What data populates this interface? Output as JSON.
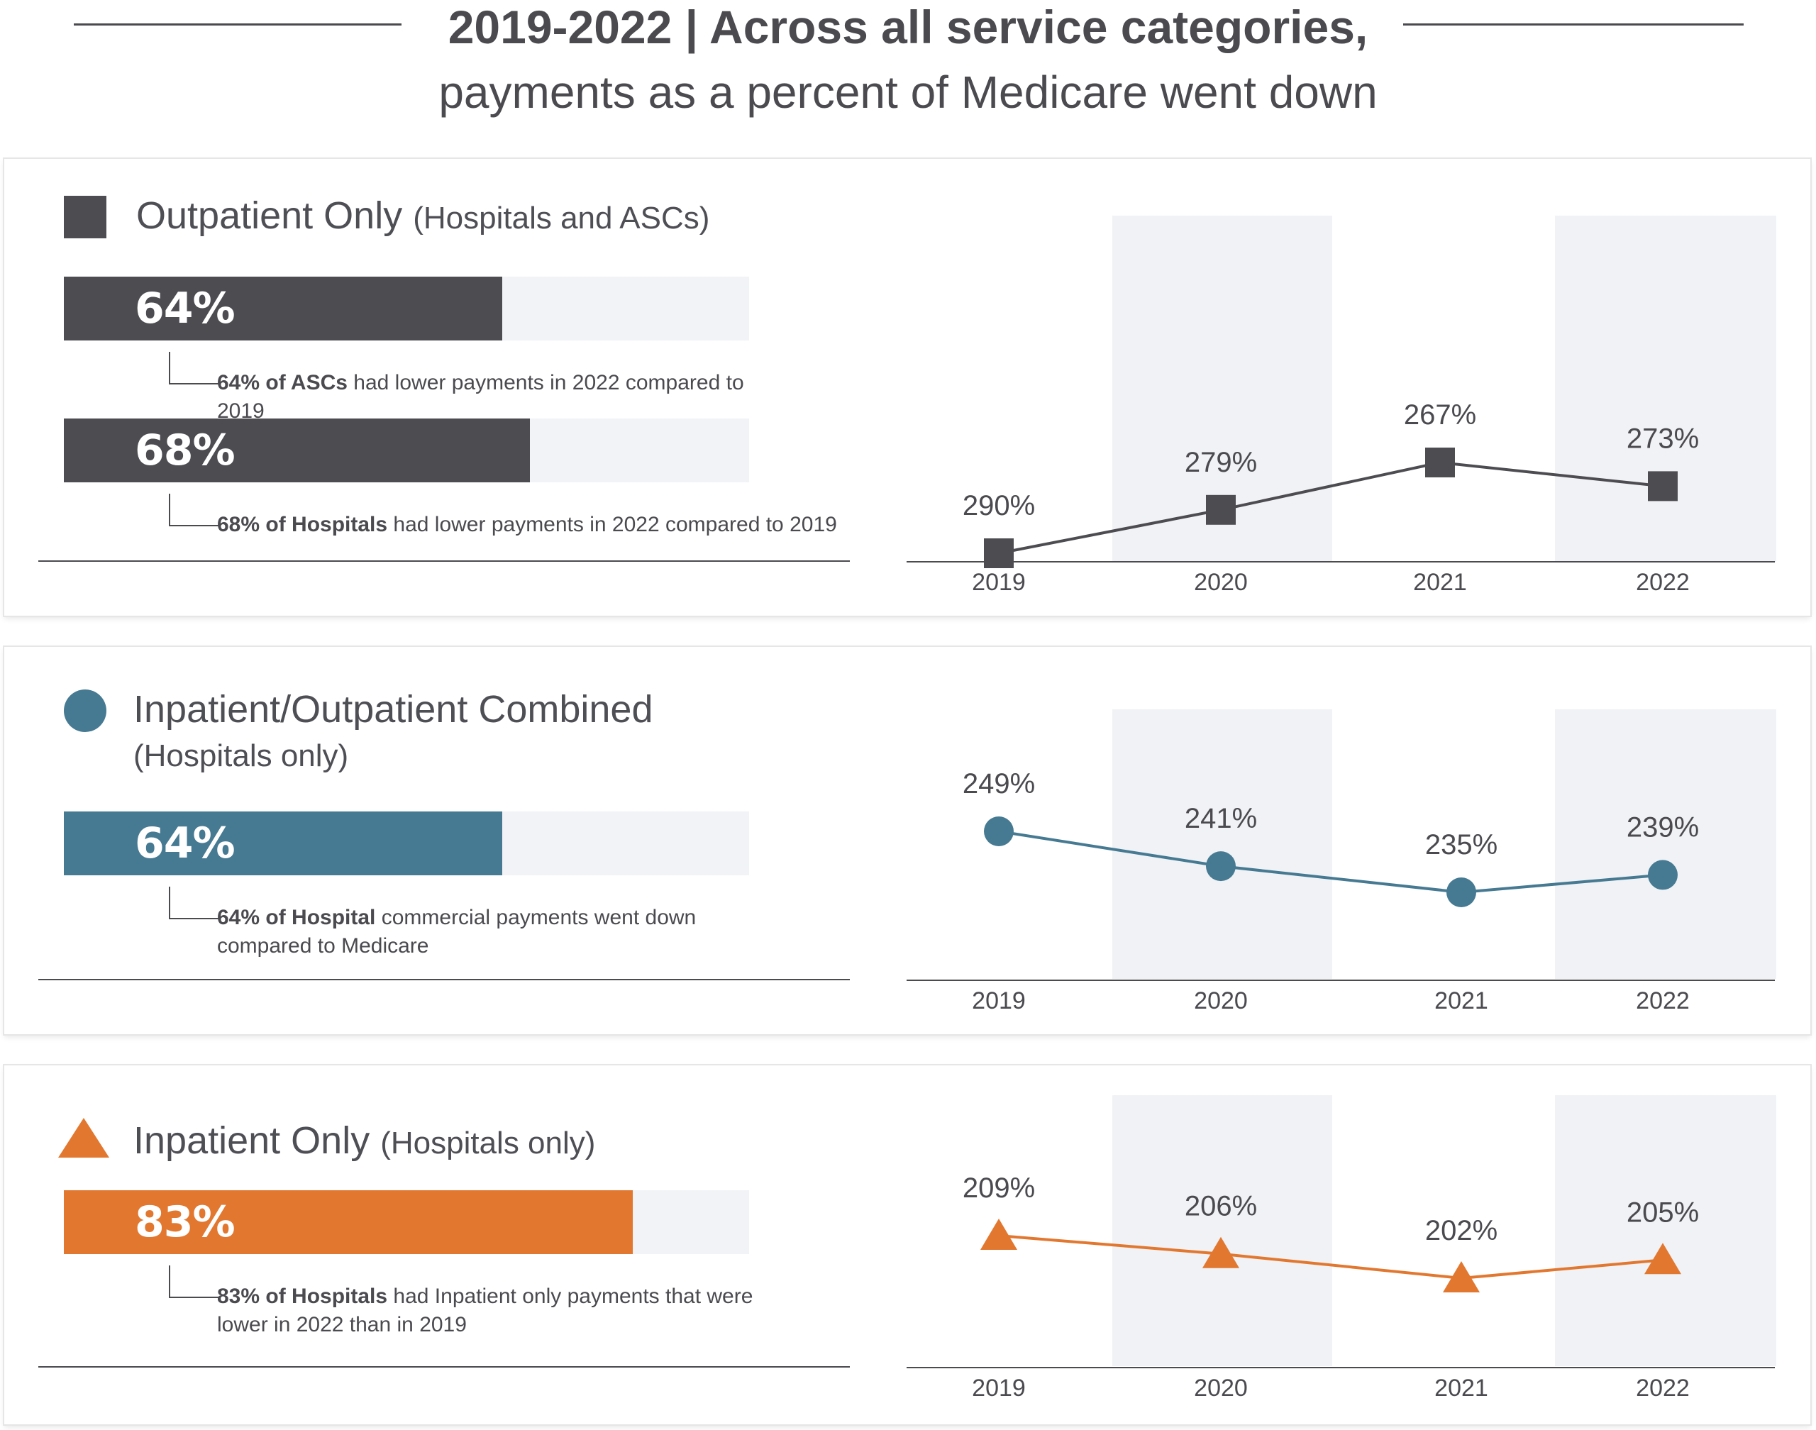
{
  "header": {
    "title": "2019-2022 | Across all service categories,",
    "subtitle": "payments as a percent of Medicare went down"
  },
  "colors": {
    "outpatient": "#4d4c51",
    "combined": "#467a92",
    "inpatient": "#e27830",
    "shade": "#f0f2f5",
    "track": "#f1f3f6"
  },
  "panels": [
    {
      "title": "Outpatient Only",
      "subtitle": "(Hospitals and ASCs)",
      "bars": [
        {
          "label": "64%",
          "value": 64,
          "note_bold": "64% of ASCs",
          "note_rest": "had lower payments in 2022 compared to 2019"
        },
        {
          "label": "68%",
          "value": 68,
          "note_bold": "68% of Hospitals",
          "note_rest": "had lower payments in 2022 compared to 2019"
        }
      ]
    },
    {
      "title": "Inpatient/Outpatient Combined",
      "subtitle": "(Hospitals only)",
      "bars": [
        {
          "label": "64%",
          "value": 64,
          "note_bold": "64% of Hospital",
          "note_rest": "commercial payments went down compared to Medicare"
        }
      ]
    },
    {
      "title": "Inpatient Only",
      "subtitle": "(Hospitals only)",
      "bars": [
        {
          "label": "83%",
          "value": 83,
          "note_bold": "83% of Hospitals",
          "note_rest": "had Inpatient only payments that were lower in 2022 than in 2019"
        }
      ]
    }
  ],
  "chart_data": [
    {
      "type": "line",
      "title": "Outpatient Only (Hospitals and ASCs)",
      "x": [
        "2019",
        "2020",
        "2021",
        "2022"
      ],
      "values": [
        290,
        279,
        267,
        273
      ],
      "labels": [
        "290%",
        "279%",
        "267%",
        "273%"
      ],
      "marker": "square",
      "unit": "% of Medicare"
    },
    {
      "type": "line",
      "title": "Inpatient/Outpatient Combined (Hospitals only)",
      "x": [
        "2019",
        "2020",
        "2021",
        "2022"
      ],
      "values": [
        249,
        241,
        235,
        239
      ],
      "labels": [
        "249%",
        "241%",
        "235%",
        "239%"
      ],
      "marker": "circle",
      "unit": "% of Medicare"
    },
    {
      "type": "line",
      "title": "Inpatient Only (Hospitals only)",
      "x": [
        "2019",
        "2020",
        "2021",
        "2022"
      ],
      "values": [
        209,
        206,
        202,
        205
      ],
      "labels": [
        "209%",
        "206%",
        "202%",
        "205%"
      ],
      "marker": "triangle",
      "unit": "% of Medicare"
    }
  ]
}
